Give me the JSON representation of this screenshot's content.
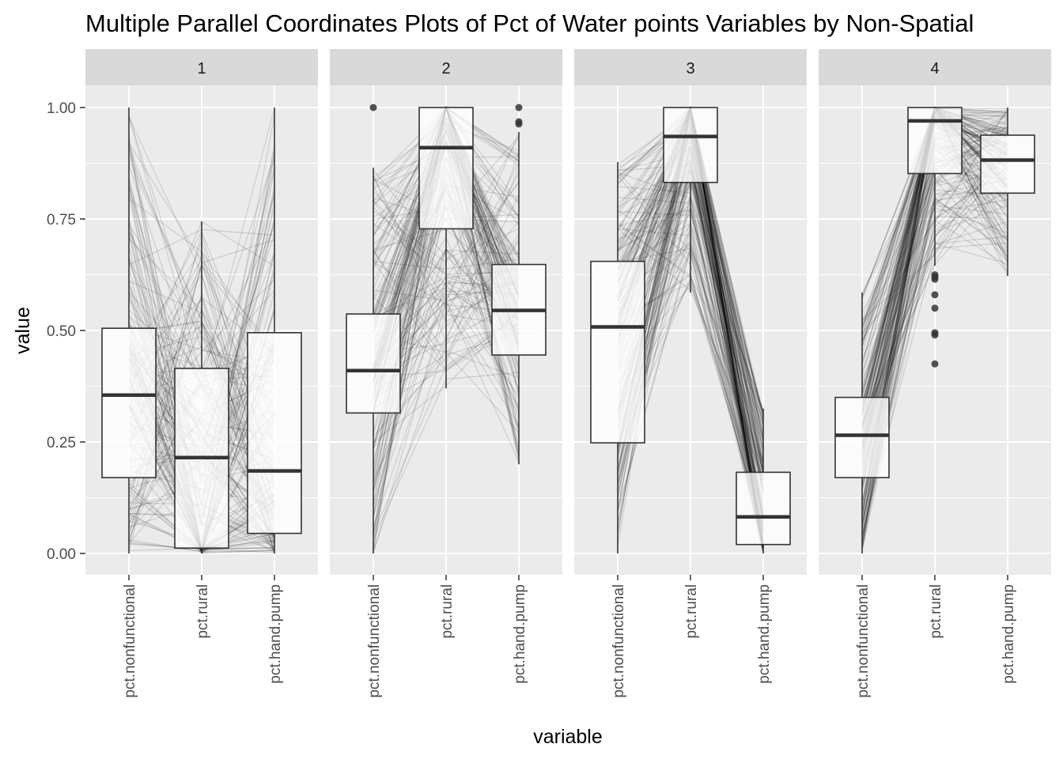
{
  "chart_data": {
    "type": "parallel_coordinates_boxplot",
    "title": "Multiple Parallel Coordinates Plots of Pct of Water points Variables by Non-Spatial",
    "xlabel": "variable",
    "ylabel": "value",
    "ylim": [
      0,
      1
    ],
    "yticks": [
      "0.00",
      "0.25",
      "0.50",
      "0.75",
      "1.00"
    ],
    "variables": [
      "pct.nonfunctional",
      "pct.rural",
      "pct.hand.pump"
    ],
    "grid": true,
    "colors": {
      "panel_bg": "#ebebeb",
      "strip_bg": "#d9d9d9",
      "grid": "#ffffff",
      "line": "#000000",
      "box_fill": "#ffffff",
      "box_stroke": "#333333"
    },
    "facets": [
      {
        "label": "1",
        "boxes": [
          {
            "variable": "pct.nonfunctional",
            "min": 0.0,
            "q1": 0.17,
            "median": 0.355,
            "q3": 0.505,
            "max": 1.0,
            "outliers": []
          },
          {
            "variable": "pct.rural",
            "min": 0.0,
            "q1": 0.012,
            "median": 0.215,
            "q3": 0.415,
            "max": 0.745,
            "outliers": []
          },
          {
            "variable": "pct.hand.pump",
            "min": 0.0,
            "q1": 0.045,
            "median": 0.185,
            "q3": 0.495,
            "max": 1.0,
            "outliers": []
          }
        ]
      },
      {
        "label": "2",
        "boxes": [
          {
            "variable": "pct.nonfunctional",
            "min": 0.0,
            "q1": 0.315,
            "median": 0.41,
            "q3": 0.537,
            "max": 0.865,
            "outliers": [
              1.0
            ]
          },
          {
            "variable": "pct.rural",
            "min": 0.37,
            "q1": 0.728,
            "median": 0.91,
            "q3": 1.0,
            "max": 1.0,
            "outliers": []
          },
          {
            "variable": "pct.hand.pump",
            "min": 0.2,
            "q1": 0.445,
            "median": 0.545,
            "q3": 0.648,
            "max": 0.945,
            "outliers": [
              0.963,
              0.968,
              1.0
            ]
          }
        ]
      },
      {
        "label": "3",
        "boxes": [
          {
            "variable": "pct.nonfunctional",
            "min": 0.0,
            "q1": 0.248,
            "median": 0.508,
            "q3": 0.655,
            "max": 0.878,
            "outliers": []
          },
          {
            "variable": "pct.rural",
            "min": 0.585,
            "q1": 0.832,
            "median": 0.935,
            "q3": 1.0,
            "max": 1.0,
            "outliers": []
          },
          {
            "variable": "pct.hand.pump",
            "min": 0.0,
            "q1": 0.02,
            "median": 0.082,
            "q3": 0.182,
            "max": 0.325,
            "outliers": []
          }
        ]
      },
      {
        "label": "4",
        "boxes": [
          {
            "variable": "pct.nonfunctional",
            "min": 0.0,
            "q1": 0.17,
            "median": 0.265,
            "q3": 0.35,
            "max": 0.585,
            "outliers": []
          },
          {
            "variable": "pct.rural",
            "min": 0.645,
            "q1": 0.852,
            "median": 0.97,
            "q3": 1.0,
            "max": 1.0,
            "outliers": [
              0.425,
              0.49,
              0.495,
              0.55,
              0.58,
              0.615,
              0.62,
              0.625
            ]
          },
          {
            "variable": "pct.hand.pump",
            "min": 0.622,
            "q1": 0.808,
            "median": 0.882,
            "q3": 0.938,
            "max": 1.0,
            "outliers": []
          }
        ]
      }
    ]
  }
}
